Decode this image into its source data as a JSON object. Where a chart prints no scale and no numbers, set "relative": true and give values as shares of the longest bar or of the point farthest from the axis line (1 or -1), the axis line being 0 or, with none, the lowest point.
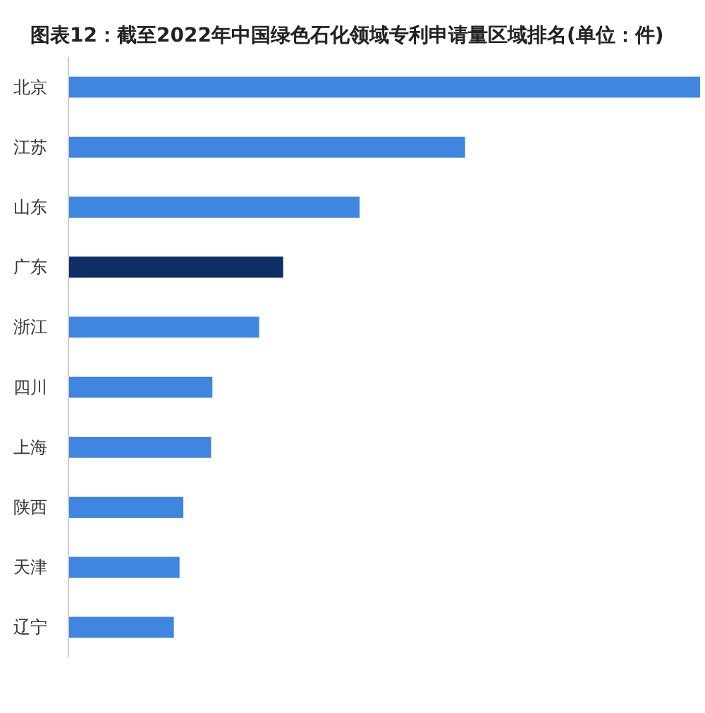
{
  "chart_data": {
    "type": "bar",
    "orientation": "horizontal",
    "relative": true,
    "title": "图表12：截至2022年中国绿色石化领域专利申请量区域排名(单位：件)",
    "categories": [
      "北京",
      "江苏",
      "山东",
      "广东",
      "浙江",
      "四川",
      "上海",
      "陕西",
      "天津",
      "辽宁"
    ],
    "values": [
      1,
      0.628,
      0.461,
      0.34,
      0.302,
      0.228,
      0.226,
      0.182,
      0.176,
      0.167
    ],
    "colors": [
      "#3f86e0",
      "#3f86e0",
      "#3f86e0",
      "#0e2f63",
      "#3f86e0",
      "#3f86e0",
      "#3f86e0",
      "#3f86e0",
      "#3f86e0",
      "#3f86e0"
    ]
  }
}
